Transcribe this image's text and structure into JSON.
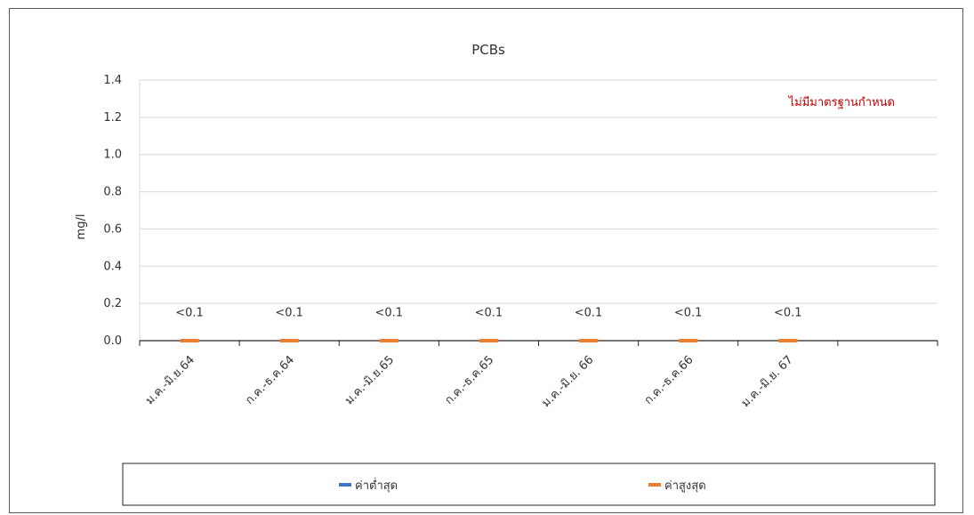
{
  "chart_data": {
    "type": "line",
    "title": "PCBs",
    "ylabel": "mg/l",
    "xlabel": "",
    "ylim": [
      0,
      1.4
    ],
    "yticks": [
      "0.0",
      "0.2",
      "0.4",
      "0.6",
      "0.8",
      "1.0",
      "1.2",
      "1.4"
    ],
    "categories": [
      "ม.ค.-มิ.ย.64",
      "ก.ค.-ธ.ค.64",
      "ม.ค.-มิ.ย.65",
      "ก.ค.-ธ.ค.65",
      "ม.ค.-มิ.ย. 66",
      "ก.ค.-ธ.ค.66",
      "ม.ค.-มิ.ย. 67"
    ],
    "series": [
      {
        "name": "ค่าต่ำสุด",
        "color": "#4472c4",
        "values": [
          0,
          0,
          0,
          0,
          0,
          0,
          0
        ]
      },
      {
        "name": "ค่าสูงสุด",
        "color": "#ed7d31",
        "values": [
          0,
          0,
          0,
          0,
          0,
          0,
          0
        ]
      }
    ],
    "data_labels": [
      "<0.1",
      "<0.1",
      "<0.1",
      "<0.1",
      "<0.1",
      "<0.1",
      "<0.1"
    ],
    "annotation": "ไม่มีมาตรฐานกำหนด",
    "grid": true,
    "legend_position": "bottom"
  }
}
